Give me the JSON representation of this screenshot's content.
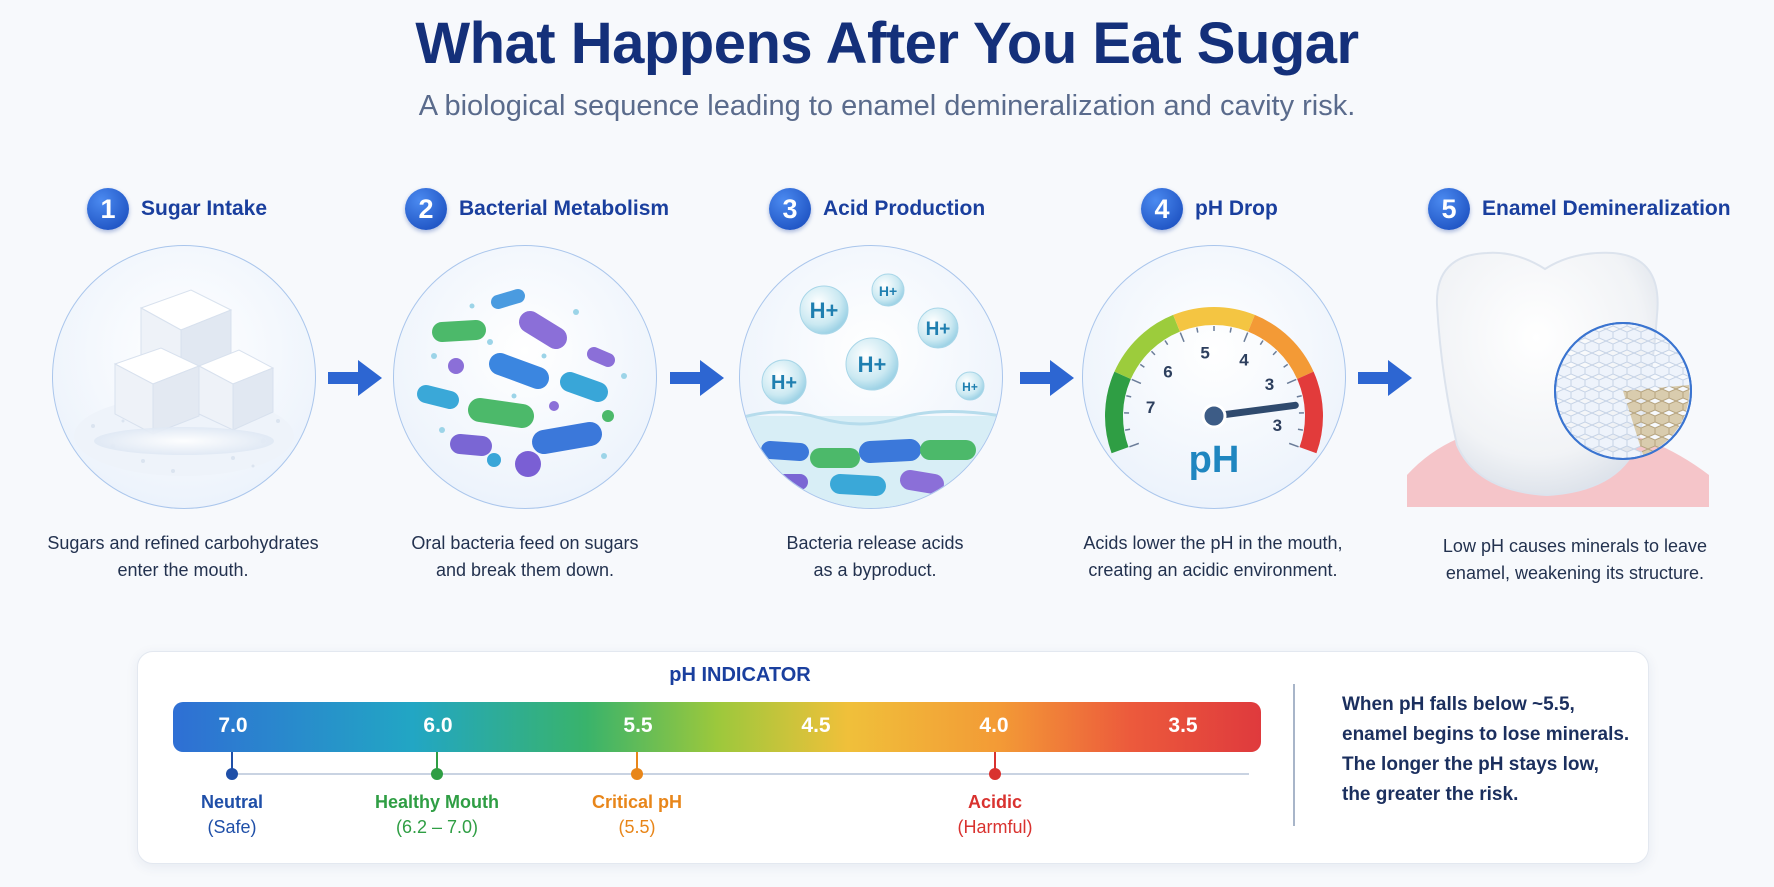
{
  "title": "What Happens After You Eat Sugar",
  "subtitle": "A biological sequence leading to enamel demineralization and cavity risk.",
  "steps": [
    {
      "num": "1",
      "title": "Sugar Intake",
      "desc1": "Sugars and refined carbohydrates",
      "desc2": "enter the mouth."
    },
    {
      "num": "2",
      "title": "Bacterial Metabolism",
      "desc1": "Oral bacteria feed on sugars",
      "desc2": "and break them down."
    },
    {
      "num": "3",
      "title": "Acid Production",
      "desc1": "Bacteria release acids",
      "desc2": "as a byproduct."
    },
    {
      "num": "4",
      "title": "pH Drop",
      "desc1": "Acids lower the pH in the mouth,",
      "desc2": "creating an acidic environment."
    },
    {
      "num": "5",
      "title": "Enamel Demineralization",
      "desc1": "Low pH causes minerals to leave",
      "desc2": "enamel, weakening its structure."
    }
  ],
  "acid_labels": [
    "H+",
    "H+",
    "H+",
    "H+",
    "H+",
    "H+"
  ],
  "gauge": {
    "label": "pH",
    "ticks": [
      "7",
      "6",
      "5",
      "4",
      "3",
      "3"
    ],
    "needle_value": 3.5,
    "colors": [
      "#2f9e44",
      "#9ccc3c",
      "#f4c542",
      "#f39a36",
      "#e23b3b"
    ]
  },
  "ph_indicator": {
    "title": "pH INDICATOR",
    "ticks": [
      "7.0",
      "6.0",
      "5.5",
      "4.5",
      "4.0",
      "3.5"
    ],
    "markers": [
      {
        "label": "Neutral",
        "sub": "(Safe)",
        "color": "#1f4fa8"
      },
      {
        "label": "Healthy Mouth",
        "sub": "(6.2 – 7.0)",
        "color": "#2f9e44"
      },
      {
        "label": "Critical pH",
        "sub": "(5.5)",
        "color": "#e8861a"
      },
      {
        "label": "Acidic",
        "sub": "(Harmful)",
        "color": "#d9322f"
      }
    ],
    "note_lines": [
      "When pH falls below ~5.5,",
      "enamel begins to lose minerals.",
      "The longer the pH stays low,",
      "the greater the risk."
    ]
  }
}
